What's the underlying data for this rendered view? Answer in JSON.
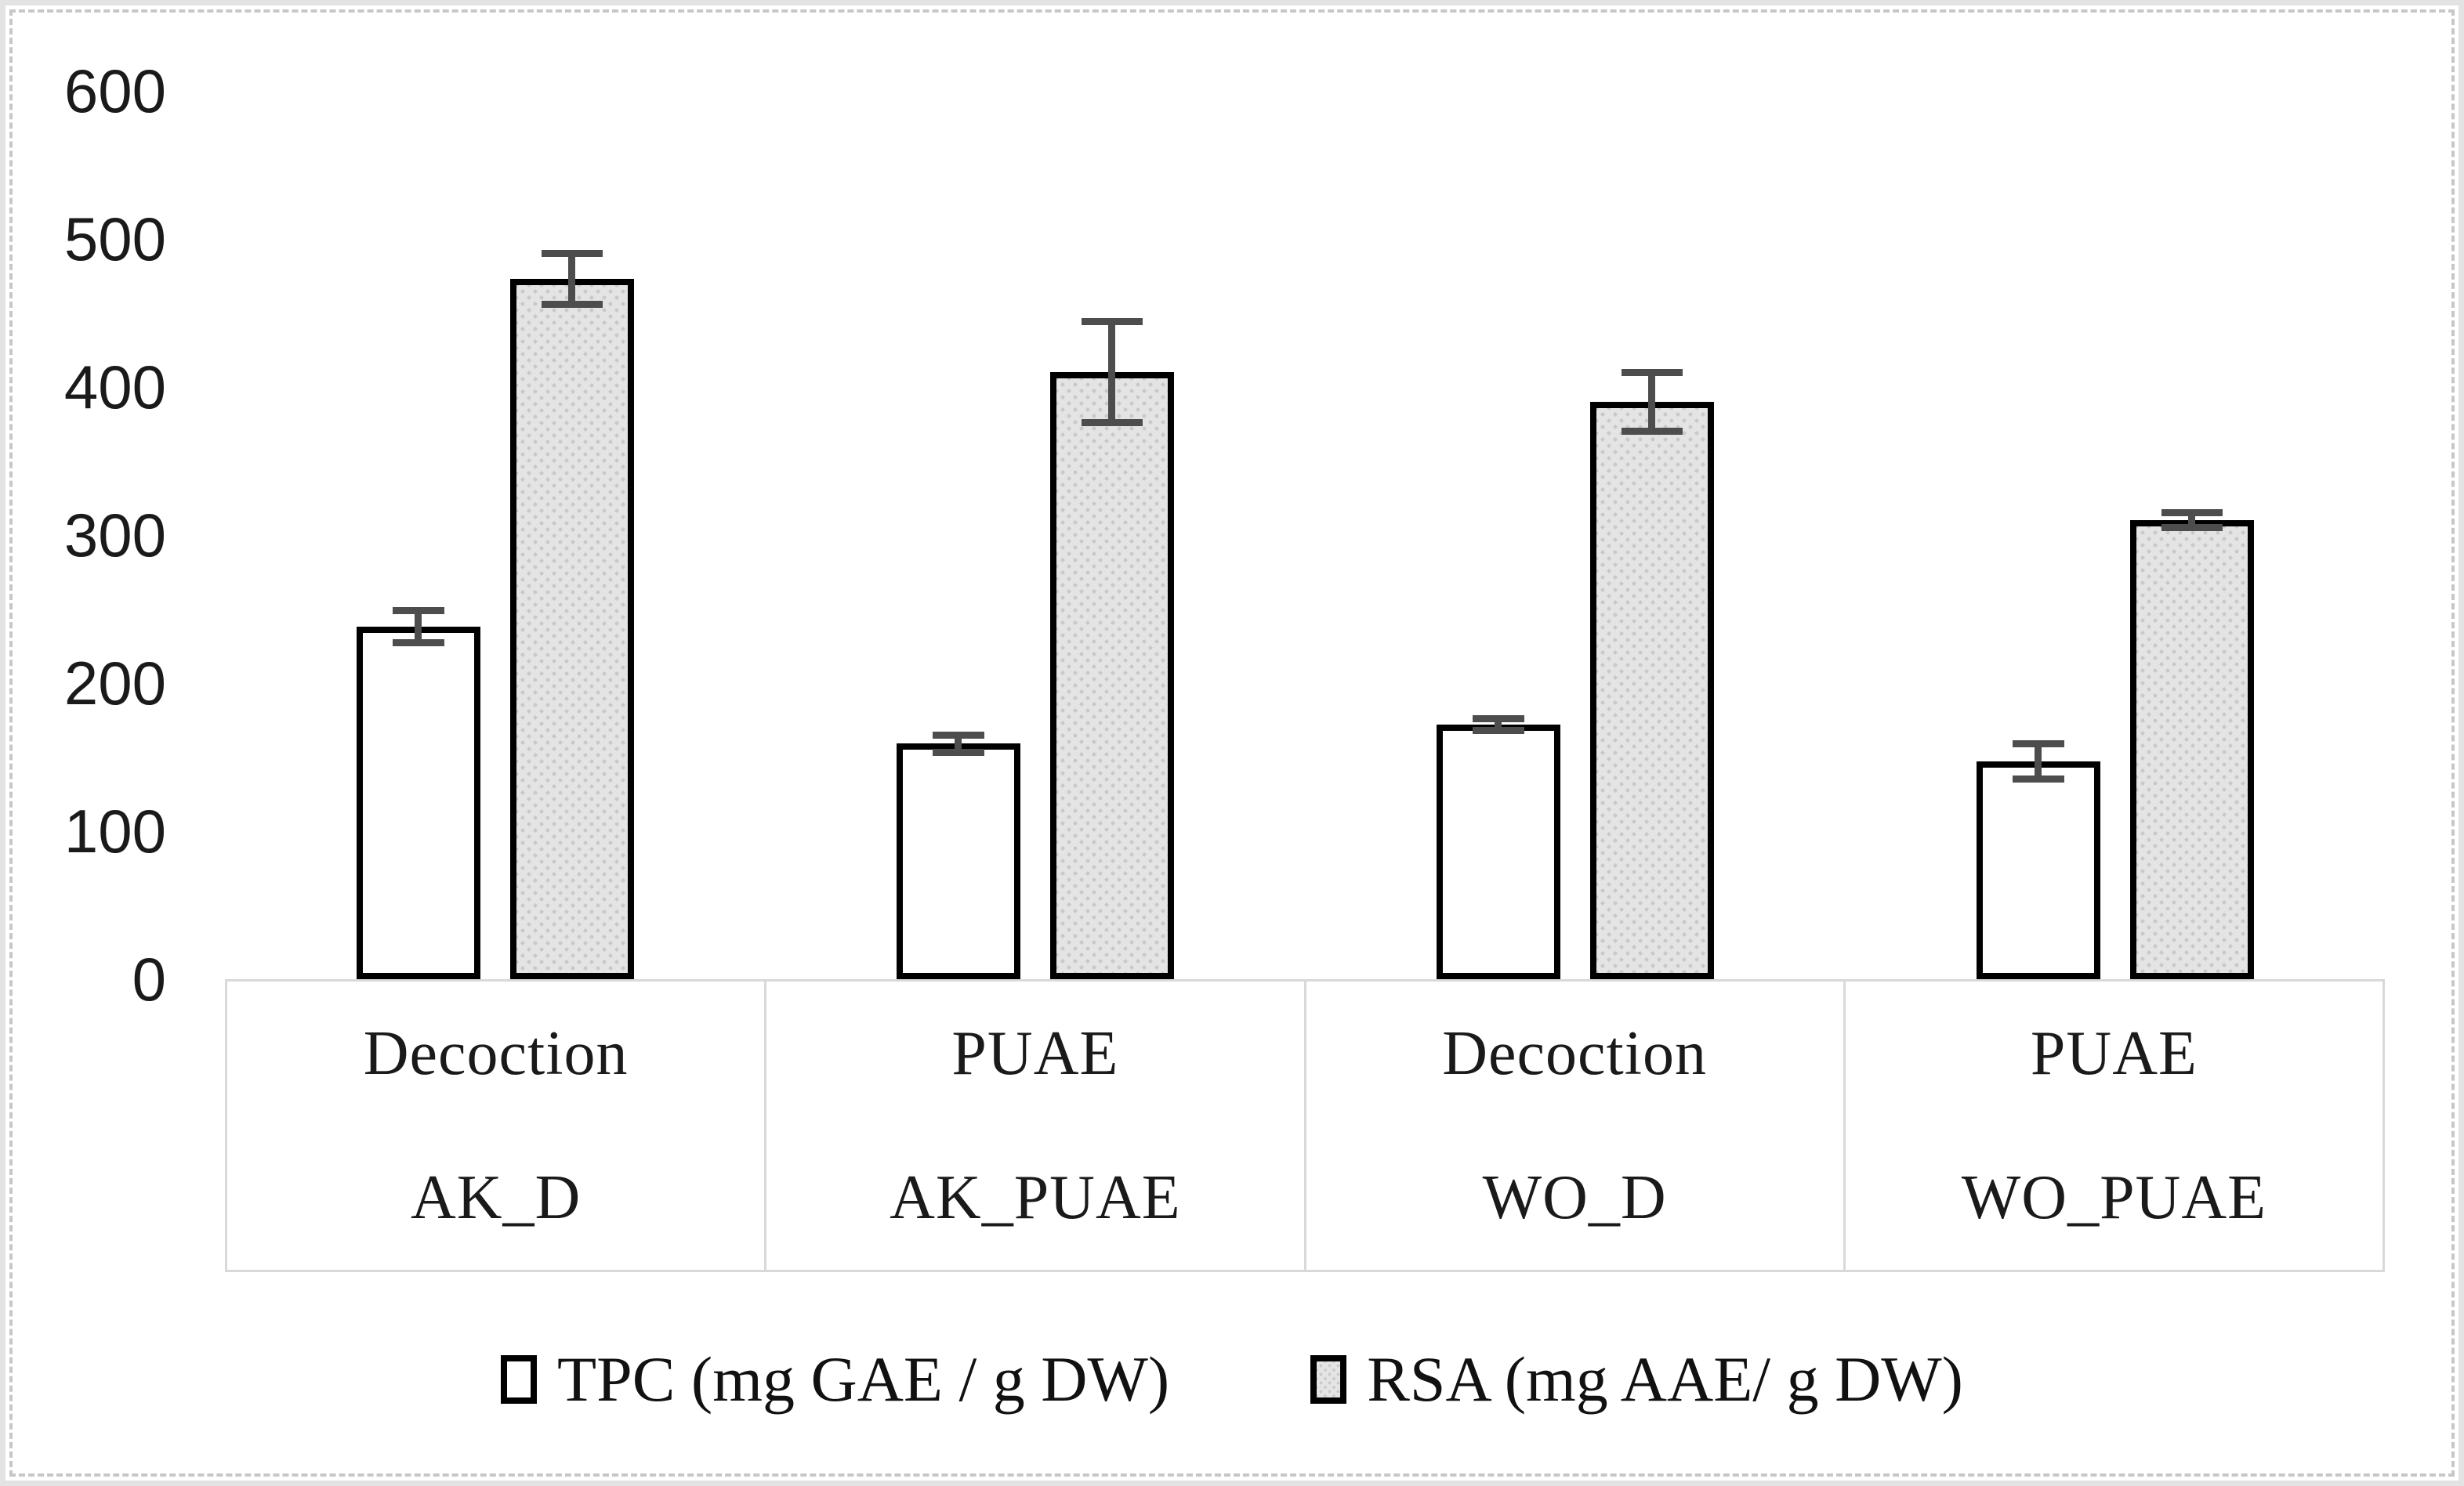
{
  "chart_data": {
    "type": "bar",
    "title": "",
    "xlabel": "",
    "ylabel": "",
    "ylim": [
      0,
      600
    ],
    "yticks": [
      0,
      100,
      200,
      300,
      400,
      500,
      600
    ],
    "grid": false,
    "legend_position": "bottom",
    "categories": [
      {
        "method": "Decoction",
        "sample": "AK_D"
      },
      {
        "method": "PUAE",
        "sample": "AK_PUAE"
      },
      {
        "method": "Decoction",
        "sample": "WO_D"
      },
      {
        "method": "PUAE",
        "sample": "WO_PUAE"
      }
    ],
    "series": [
      {
        "name": "TPC (mg GAE / g DW)",
        "style": "white",
        "values": [
          238,
          159,
          172,
          147
        ],
        "errors": [
          11,
          6,
          4,
          12
        ]
      },
      {
        "name": "RSA (mg AAE/ g DW)",
        "style": "dotted-gray",
        "values": [
          473,
          410,
          390,
          310
        ],
        "errors": [
          17,
          34,
          20,
          5
        ]
      }
    ],
    "colors": {
      "bar_border": "#000000",
      "error_bar": "#4d4d4d",
      "gray_fill": "#e4e4e4",
      "gray_dot": "#c9c9c9",
      "table_border": "#d9d9d9",
      "tick_text": "#1a1a1a"
    }
  }
}
